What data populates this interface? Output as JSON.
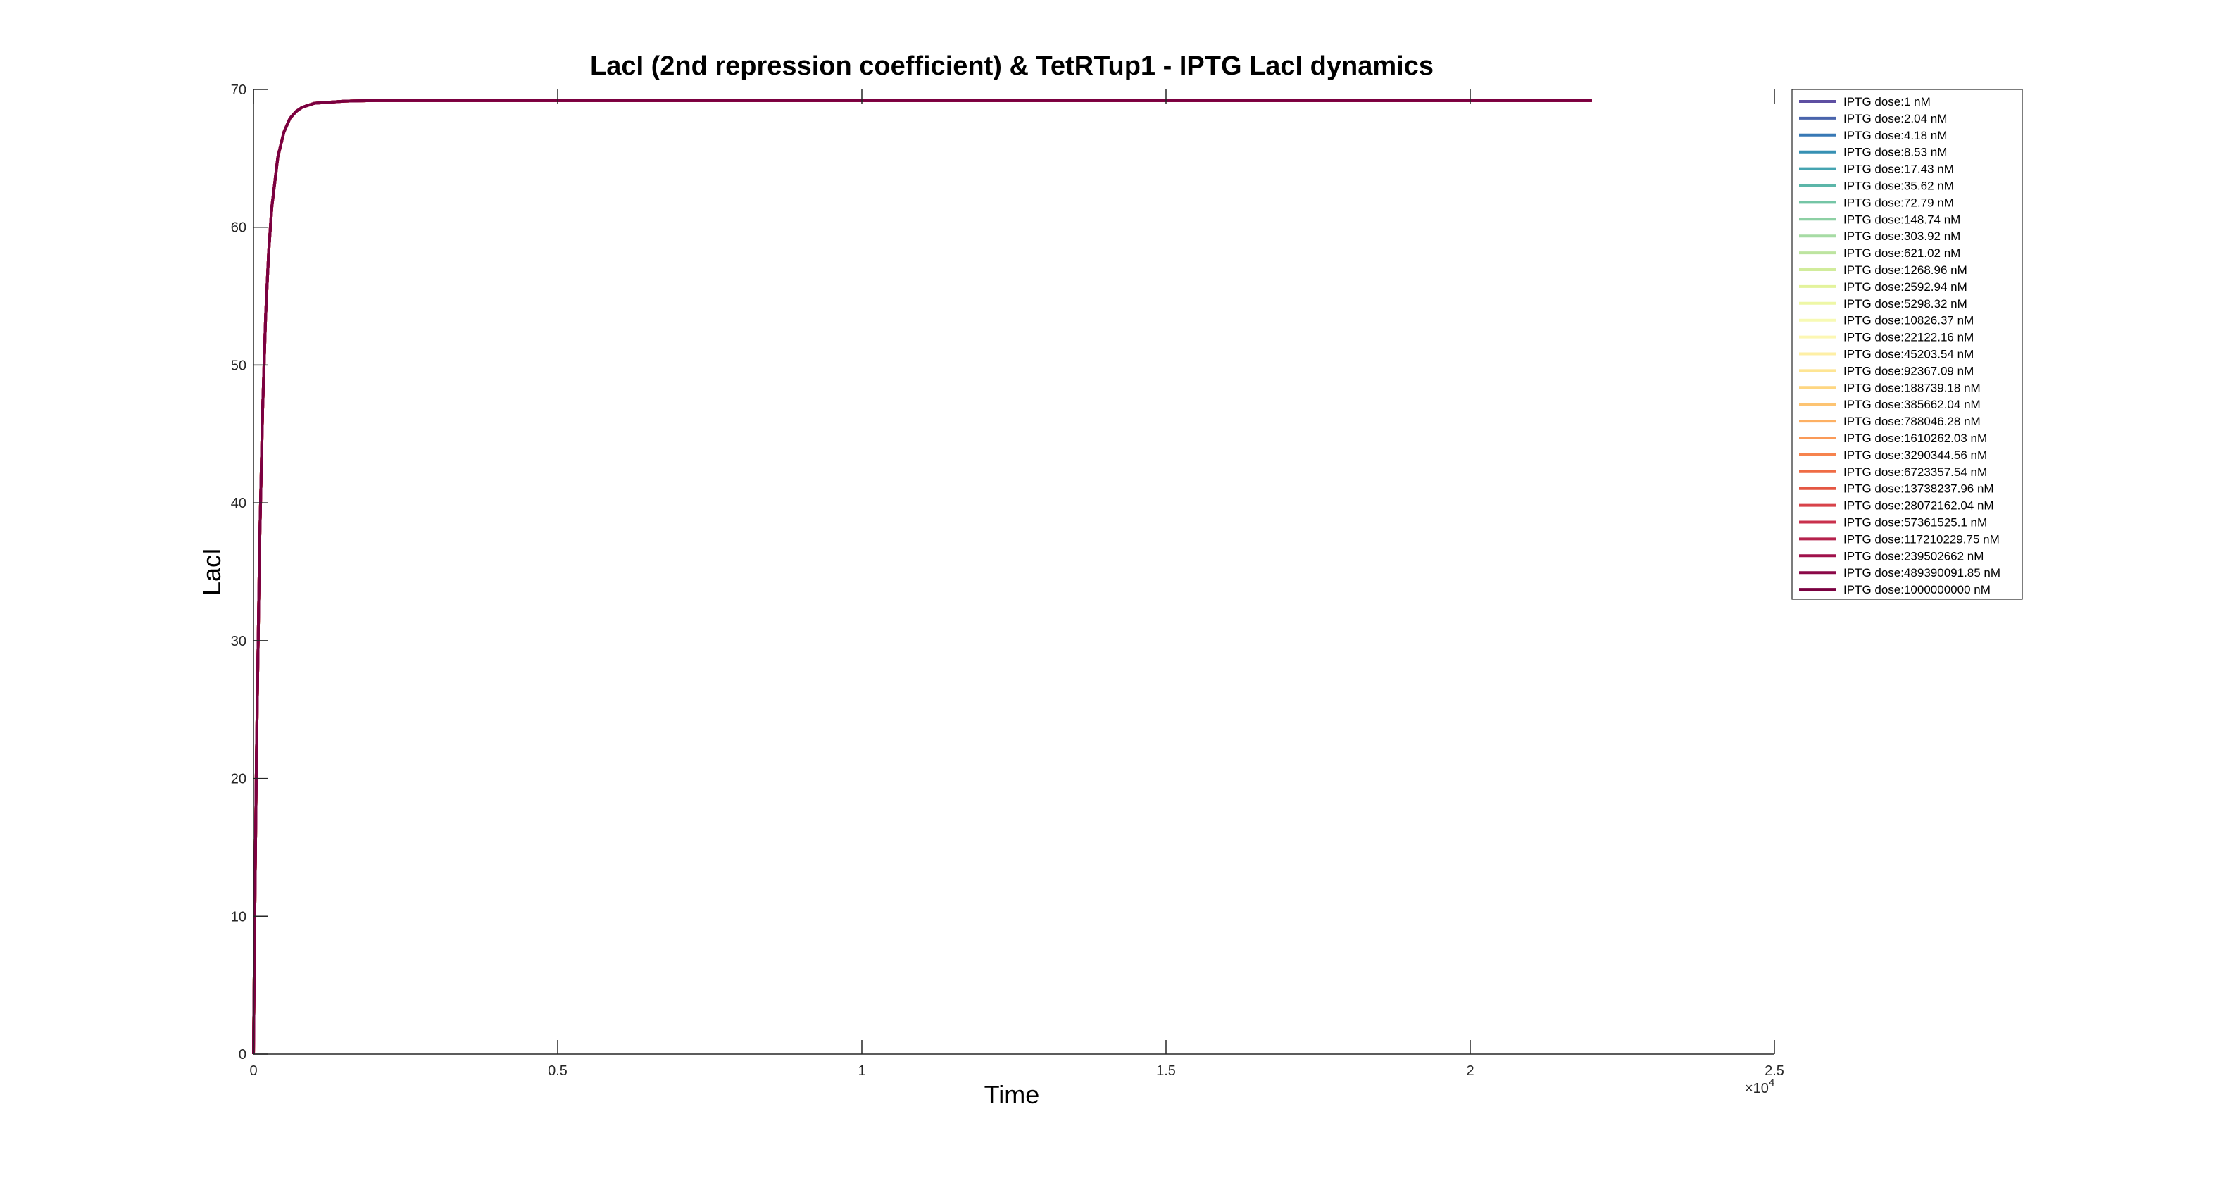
{
  "chart_data": {
    "type": "line",
    "title": "LacI (2nd repression coefficient) & TetRTup1 - IPTG LacI dynamics",
    "xlabel": "Time",
    "ylabel": "LacI",
    "xlim": [
      0,
      25000
    ],
    "ylim": [
      0,
      70
    ],
    "x_ticks": [
      0,
      5000,
      10000,
      15000,
      20000,
      25000
    ],
    "x_tick_labels": [
      "0",
      "0.5",
      "1",
      "1.5",
      "2",
      "2.5"
    ],
    "x_exponent_label": "×10",
    "x_exponent_power": "4",
    "y_ticks": [
      0,
      10,
      20,
      30,
      40,
      50,
      60,
      70
    ],
    "y_tick_labels": [
      "0",
      "10",
      "20",
      "30",
      "40",
      "50",
      "60",
      "70"
    ],
    "grid": false,
    "legend_position": "top-right, outside axes",
    "curve": {
      "x": [
        0,
        20,
        50,
        100,
        150,
        200,
        250,
        300,
        400,
        500,
        600,
        700,
        800,
        1000,
        1500,
        2000,
        5000,
        10000,
        15000,
        22000
      ],
      "y": [
        0,
        9.5,
        21.8,
        36.7,
        46.8,
        53.6,
        58.2,
        61.4,
        65.1,
        66.9,
        67.9,
        68.4,
        68.7,
        69.0,
        69.15,
        69.2,
        69.2,
        69.2,
        69.2,
        69.2
      ]
    },
    "series": [
      {
        "name": "IPTG dose:1 nM",
        "color": "#5e4fa2"
      },
      {
        "name": "IPTG dose:2.04 nM",
        "color": "#4a64ac"
      },
      {
        "name": "IPTG dose:4.18 nM",
        "color": "#3879b5"
      },
      {
        "name": "IPTG dose:8.53 nM",
        "color": "#3790b3"
      },
      {
        "name": "IPTG dose:17.43 nM",
        "color": "#45a4b1"
      },
      {
        "name": "IPTG dose:35.62 nM",
        "color": "#5cb6a9"
      },
      {
        "name": "IPTG dose:72.79 nM",
        "color": "#74c5a5"
      },
      {
        "name": "IPTG dose:148.74 nM",
        "color": "#8dd0a4"
      },
      {
        "name": "IPTG dose:303.92 nM",
        "color": "#a6dba4"
      },
      {
        "name": "IPTG dose:621.02 nM",
        "color": "#bde4a0"
      },
      {
        "name": "IPTG dose:1268.96 nM",
        "color": "#d1ec9c"
      },
      {
        "name": "IPTG dose:2592.94 nM",
        "color": "#e3f39c"
      },
      {
        "name": "IPTG dose:5298.32 nM",
        "color": "#eef7a6"
      },
      {
        "name": "IPTG dose:10826.37 nM",
        "color": "#f7fab4"
      },
      {
        "name": "IPTG dose:22122.16 nM",
        "color": "#fcf7b4"
      },
      {
        "name": "IPTG dose:45203.54 nM",
        "color": "#feefa5"
      },
      {
        "name": "IPTG dose:92367.09 nM",
        "color": "#fee593"
      },
      {
        "name": "IPTG dose:188739.18 nM",
        "color": "#fed681"
      },
      {
        "name": "IPTG dose:385662.04 nM",
        "color": "#fdc473"
      },
      {
        "name": "IPTG dose:788046.28 nM",
        "color": "#fdb063"
      },
      {
        "name": "IPTG dose:1610262.03 nM",
        "color": "#fa9a58"
      },
      {
        "name": "IPTG dose:3290344.56 nM",
        "color": "#f6834e"
      },
      {
        "name": "IPTG dose:6723357.54 nM",
        "color": "#ef6c45"
      },
      {
        "name": "IPTG dose:13738237.96 nM",
        "color": "#e45642"
      },
      {
        "name": "IPTG dose:28072162.04 nM",
        "color": "#d8434a"
      },
      {
        "name": "IPTG dose:57361525.1 nM",
        "color": "#c9314c"
      },
      {
        "name": "IPTG dose:117210229.75 nM",
        "color": "#b5214c"
      },
      {
        "name": "IPTG dose:239502662 nM",
        "color": "#a0124b"
      },
      {
        "name": "IPTG dose:489390091.85 nM",
        "color": "#8b0848"
      },
      {
        "name": "IPTG dose:1000000000 nM",
        "color": "#7a0040"
      }
    ]
  }
}
